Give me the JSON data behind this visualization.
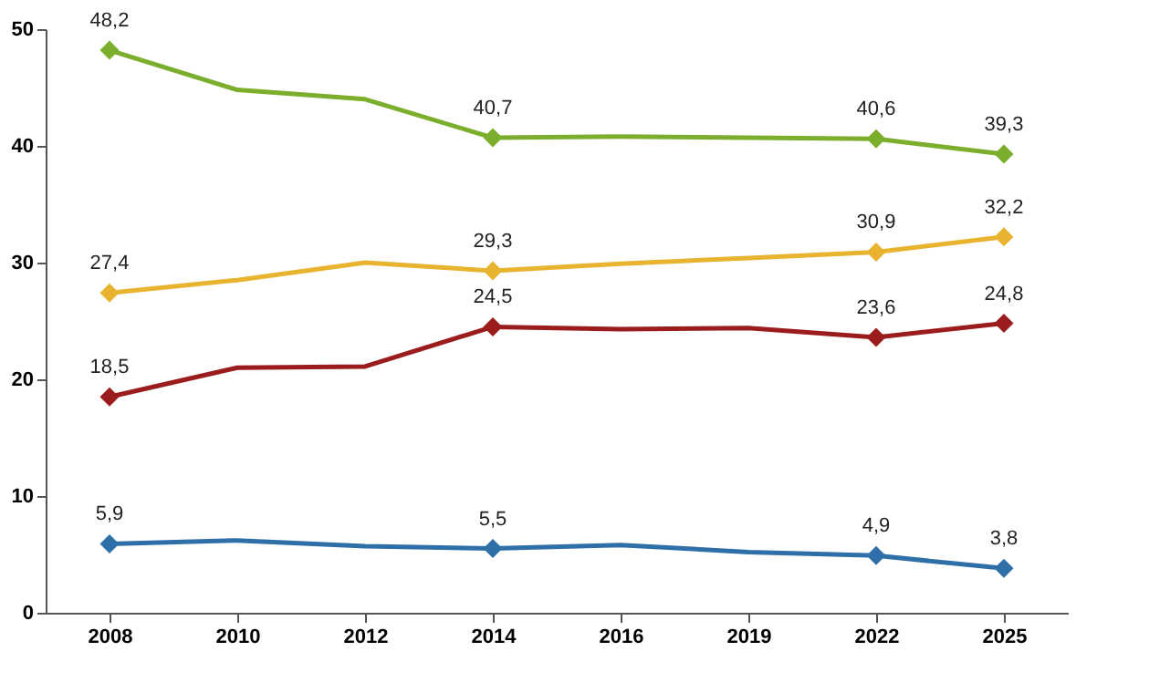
{
  "chart_data": {
    "type": "line",
    "categories": [
      "2008",
      "2010",
      "2012",
      "2014",
      "2016",
      "2019",
      "2022",
      "2025"
    ],
    "ylim": [
      0,
      50
    ],
    "yticks": [
      0,
      10,
      20,
      30,
      40,
      50
    ],
    "grid": false,
    "marker": "diamond",
    "line_style": "solid",
    "series": [
      {
        "color": "#7cae2e",
        "values": [
          48.2,
          44.8,
          44.0,
          40.7,
          40.8,
          40.7,
          40.6,
          39.3
        ],
        "value_labels": [
          "48,2",
          null,
          null,
          "40,7",
          null,
          null,
          "40,6",
          "39,3"
        ]
      },
      {
        "color": "#e8b430",
        "values": [
          27.4,
          28.5,
          30.0,
          29.3,
          29.9,
          30.4,
          30.9,
          32.2
        ],
        "value_labels": [
          "27,4",
          null,
          null,
          "29,3",
          null,
          null,
          "30,9",
          "32,2"
        ]
      },
      {
        "color": "#9b1c1c",
        "values": [
          18.5,
          21.0,
          21.1,
          24.5,
          24.3,
          24.4,
          23.6,
          24.8
        ],
        "value_labels": [
          "18,5",
          null,
          null,
          "24,5",
          null,
          null,
          "23,6",
          "24,8"
        ]
      },
      {
        "color": "#2f6fa8",
        "values": [
          5.9,
          6.2,
          5.7,
          5.5,
          5.8,
          5.2,
          4.9,
          3.8
        ],
        "value_labels": [
          "5,9",
          null,
          null,
          "5,5",
          null,
          null,
          "4,9",
          "3,8"
        ]
      }
    ]
  }
}
